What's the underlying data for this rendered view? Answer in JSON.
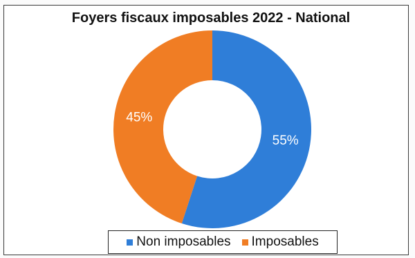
{
  "colors": {
    "non_imposables": "#2f7ed8",
    "imposables": "#f07d24"
  },
  "chart_data": {
    "type": "pie",
    "variant": "donut",
    "title": "Foyers fiscaux imposables 2022 - National",
    "legend_position": "bottom",
    "categories": [
      "Non imposables",
      "Imposables"
    ],
    "values": [
      55,
      45
    ],
    "labels": [
      "55%",
      "45%"
    ],
    "colors": [
      "#2f7ed8",
      "#f07d24"
    ]
  }
}
